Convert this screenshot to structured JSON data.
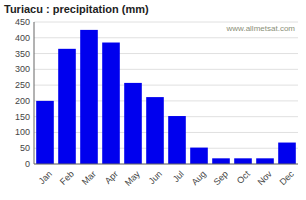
{
  "chart_data": {
    "type": "bar",
    "title": "Turiacu : precipitation (mm)",
    "categories": [
      "Jan",
      "Feb",
      "Mar",
      "Apr",
      "May",
      "Jun",
      "Jul",
      "Aug",
      "Sep",
      "Oct",
      "Nov",
      "Dec"
    ],
    "values": [
      200,
      365,
      425,
      385,
      257,
      212,
      152,
      52,
      18,
      18,
      18,
      68
    ],
    "color": "#0000EE",
    "ylim": [
      0,
      450
    ],
    "yticks": [
      0,
      50,
      100,
      150,
      200,
      250,
      300,
      350,
      400,
      450
    ],
    "grid": true,
    "annotations": [
      "www.allmetsat.com"
    ]
  }
}
